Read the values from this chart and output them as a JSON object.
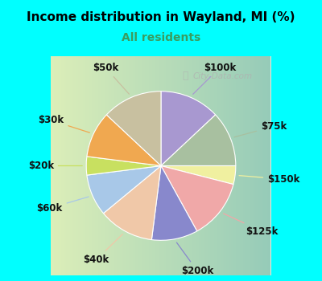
{
  "title": "Income distribution in Wayland, MI (%)",
  "subtitle": "All residents",
  "title_color": "#000000",
  "subtitle_color": "#3a9c5f",
  "background_top": "#00ffff",
  "background_chart_left": "#c8eedd",
  "background_chart_right": "#e8f4f0",
  "watermark": "City-Data.com",
  "slices": [
    {
      "label": "$100k",
      "value": 13,
      "color": "#a898d0"
    },
    {
      "label": "$75k",
      "value": 12,
      "color": "#a8c0a0"
    },
    {
      "label": "$150k",
      "value": 4,
      "color": "#f0f0a0"
    },
    {
      "label": "$125k",
      "value": 13,
      "color": "#f0a8a8"
    },
    {
      "label": "$200k",
      "value": 10,
      "color": "#8888cc"
    },
    {
      "label": "$40k",
      "value": 12,
      "color": "#f0c8a8"
    },
    {
      "label": "$60k",
      "value": 9,
      "color": "#a8c8e8"
    },
    {
      "label": "$20k",
      "value": 4,
      "color": "#c8e060"
    },
    {
      "label": "$30k",
      "value": 10,
      "color": "#f0a850"
    },
    {
      "label": "$50k",
      "value": 13,
      "color": "#c8c0a0"
    }
  ],
  "label_fontsize": 8.5,
  "label_color": "#111111",
  "figsize": [
    4.0,
    3.5
  ],
  "dpi": 100
}
